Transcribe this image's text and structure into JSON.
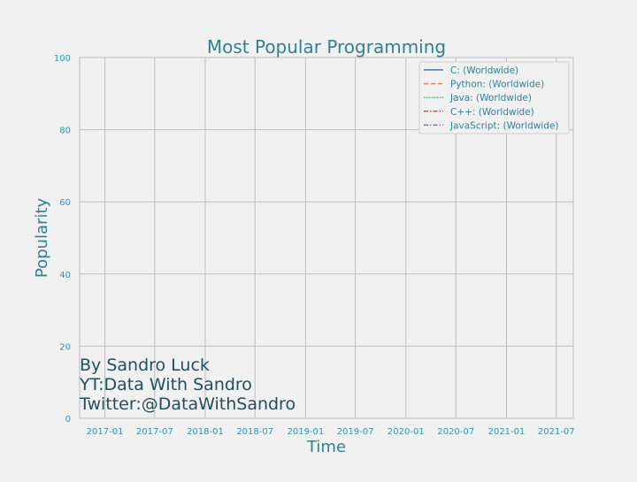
{
  "chart_data": {
    "type": "line",
    "title": "Most Popular Programming",
    "xlabel": "Time",
    "ylabel": "Popularity",
    "ylim": [
      0,
      100
    ],
    "xlim": [
      "2016-10-01",
      "2021-09-01"
    ],
    "grid": true,
    "legend_position": "top-right",
    "x_ticks": [
      "2017-01",
      "2017-07",
      "2018-01",
      "2018-07",
      "2019-01",
      "2019-07",
      "2020-01",
      "2020-07",
      "2021-01",
      "2021-07"
    ],
    "y_ticks": [
      0,
      20,
      40,
      60,
      80,
      100
    ],
    "series": [
      {
        "name": "C: (Worldwide)",
        "values": [],
        "color": "#4c72b0",
        "dash": ""
      },
      {
        "name": "Python: (Worldwide)",
        "values": [],
        "color": "#dd8452",
        "dash": "5,3"
      },
      {
        "name": "Java: (Worldwide)",
        "values": [],
        "color": "#55a868",
        "dash": "1.5,1.5"
      },
      {
        "name": "C++: (Worldwide)",
        "values": [],
        "color": "#c44e52",
        "dash": "5,2,1.5,2"
      },
      {
        "name": "JavaScript: (Worldwide)",
        "values": [],
        "color": "#8172b3",
        "dash": "5,2,1.5,2"
      }
    ],
    "annotation_lines": [
      "By Sandro Luck",
      "YT:Data With Sandro",
      "Twitter:@DataWithSandro"
    ]
  },
  "colors": {
    "title": "#2e8193",
    "tick": "#2a94b3",
    "annotation": "#1f4e5f",
    "grid": "#bdbdbd",
    "axes_bg": "#f1f1f1"
  }
}
